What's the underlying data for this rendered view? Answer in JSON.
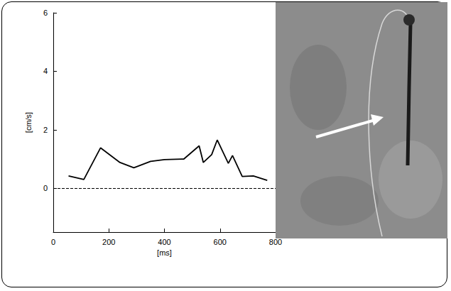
{
  "chart_data": {
    "type": "line",
    "x_label": "[ms]",
    "y_label": "[cm/s]",
    "x": [
      55,
      110,
      170,
      240,
      290,
      350,
      400,
      470,
      525,
      540,
      570,
      590,
      630,
      645,
      680,
      720,
      770
    ],
    "values": [
      0.42,
      0.3,
      1.38,
      0.88,
      0.7,
      0.92,
      0.98,
      1.0,
      1.45,
      0.88,
      1.15,
      1.65,
      0.85,
      1.12,
      0.4,
      0.42,
      0.27
    ],
    "color": "#000000",
    "line_style": "solid",
    "hline": 0,
    "xlim": [
      0,
      800
    ],
    "xticks": [
      0,
      200,
      400,
      600,
      800
    ],
    "ylim": [
      -1.5,
      6
    ],
    "yticks": [
      0,
      2,
      4,
      6
    ],
    "grid": false
  }
}
